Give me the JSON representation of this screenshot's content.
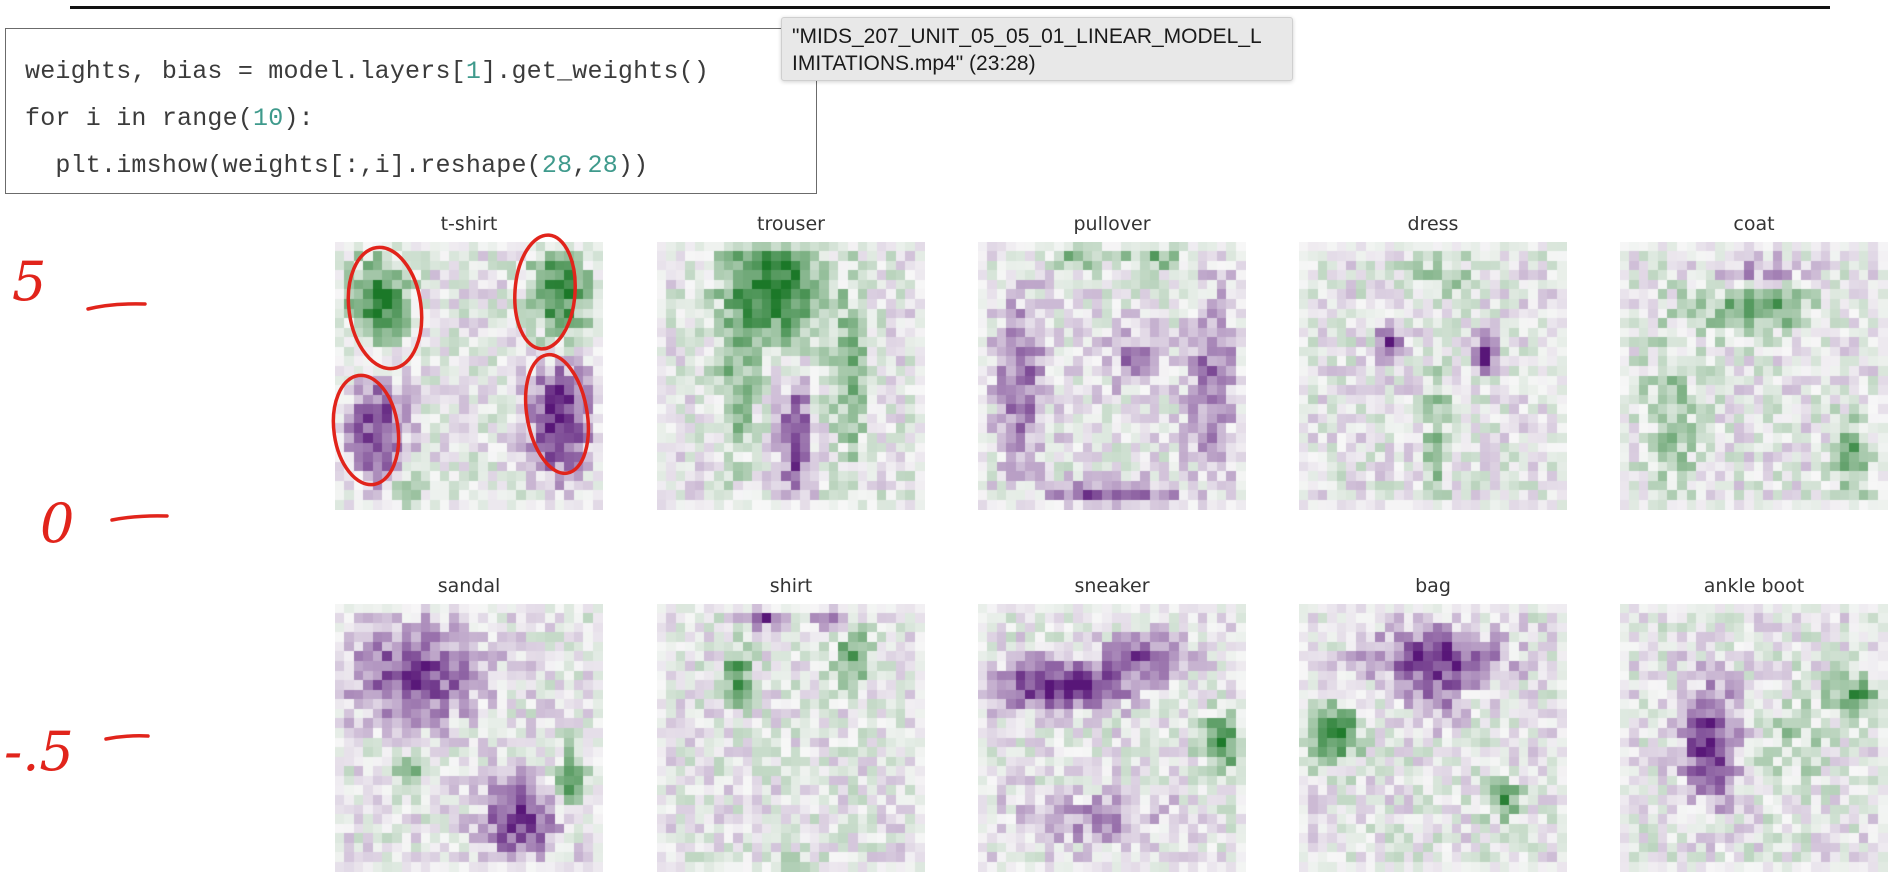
{
  "code_cell": {
    "lines": [
      [
        {
          "t": "weights, bias = model.layers["
        },
        {
          "t": "1",
          "num": true
        },
        {
          "t": "].get_weights()"
        }
      ],
      [
        {
          "t": "for i in range("
        },
        {
          "t": "10",
          "num": true
        },
        {
          "t": "):"
        }
      ],
      [
        {
          "t": "  plt.imshow(weights[:,i].reshape("
        },
        {
          "t": "28",
          "num": true
        },
        {
          "t": ","
        },
        {
          "t": "28",
          "num": true
        },
        {
          "t": "))"
        }
      ]
    ]
  },
  "tooltip": {
    "line1": "\"MIDS_207_UNIT_05_05_01_LINEAR_MODEL_L",
    "line2": "IMITATIONS.mp4\" (23:28)"
  },
  "annotations": {
    "top": "5",
    "middle": "0",
    "bottom": "-.5"
  },
  "colors": {
    "positive": "#1b6e22",
    "negative": "#4d1466",
    "annotation": "#e1241b"
  },
  "panels": [
    {
      "title": "t-shirt"
    },
    {
      "title": "trouser"
    },
    {
      "title": "pullover"
    },
    {
      "title": "dress"
    },
    {
      "title": "coat"
    },
    {
      "title": "sandal"
    },
    {
      "title": "shirt"
    },
    {
      "title": "sneaker"
    },
    {
      "title": "bag"
    },
    {
      "title": "ankle boot"
    }
  ]
}
